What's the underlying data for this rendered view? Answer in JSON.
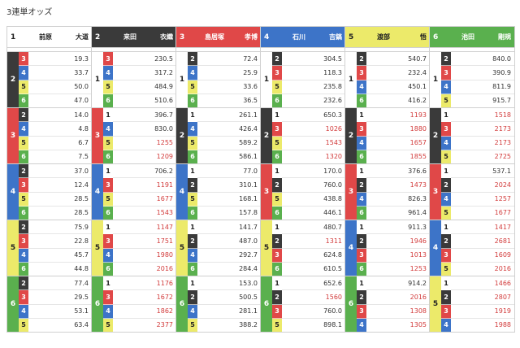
{
  "title": "3連単オッズ",
  "panels": [
    {
      "num": "1",
      "name": "前原",
      "given": "大道",
      "color": "b1",
      "groups": [
        {
          "second": "2",
          "second_color": "b2",
          "rows": [
            {
              "third": "3",
              "c": "b3",
              "odds": "19.3"
            },
            {
              "third": "4",
              "c": "b4",
              "odds": "33.7"
            },
            {
              "third": "5",
              "c": "b5",
              "odds": "50.0"
            },
            {
              "third": "6",
              "c": "b6",
              "odds": "47.0"
            }
          ]
        },
        {
          "second": "3",
          "second_color": "b3",
          "rows": [
            {
              "third": "2",
              "c": "b2",
              "odds": "14.0"
            },
            {
              "third": "4",
              "c": "b4",
              "odds": "4.8"
            },
            {
              "third": "5",
              "c": "b5",
              "odds": "6.7"
            },
            {
              "third": "6",
              "c": "b6",
              "odds": "7.5"
            }
          ]
        },
        {
          "second": "4",
          "second_color": "b4",
          "rows": [
            {
              "third": "2",
              "c": "b2",
              "odds": "37.0"
            },
            {
              "third": "3",
              "c": "b3",
              "odds": "12.4"
            },
            {
              "third": "5",
              "c": "b5",
              "odds": "28.5"
            },
            {
              "third": "6",
              "c": "b6",
              "odds": "28.5"
            }
          ]
        },
        {
          "second": "5",
          "second_color": "b5",
          "rows": [
            {
              "third": "2",
              "c": "b2",
              "odds": "75.9"
            },
            {
              "third": "3",
              "c": "b3",
              "odds": "22.8"
            },
            {
              "third": "4",
              "c": "b4",
              "odds": "45.7"
            },
            {
              "third": "6",
              "c": "b6",
              "odds": "44.8"
            }
          ]
        },
        {
          "second": "6",
          "second_color": "b6",
          "rows": [
            {
              "third": "2",
              "c": "b2",
              "odds": "77.4"
            },
            {
              "third": "3",
              "c": "b3",
              "odds": "29.5"
            },
            {
              "third": "4",
              "c": "b4",
              "odds": "53.1"
            },
            {
              "third": "5",
              "c": "b5",
              "odds": "63.4"
            }
          ]
        }
      ]
    },
    {
      "num": "2",
      "name": "来田",
      "given": "衣織",
      "color": "b2",
      "groups": [
        {
          "second": "1",
          "second_color": "b1",
          "rows": [
            {
              "third": "3",
              "c": "b3",
              "odds": "230.5"
            },
            {
              "third": "4",
              "c": "b4",
              "odds": "317.2"
            },
            {
              "third": "5",
              "c": "b5",
              "odds": "484.9"
            },
            {
              "third": "6",
              "c": "b6",
              "odds": "510.6"
            }
          ]
        },
        {
          "second": "3",
          "second_color": "b3",
          "rows": [
            {
              "third": "1",
              "c": "b1",
              "odds": "396.7"
            },
            {
              "third": "4",
              "c": "b4",
              "odds": "830.0"
            },
            {
              "third": "5",
              "c": "b5",
              "odds": "1255"
            },
            {
              "third": "6",
              "c": "b6",
              "odds": "1209"
            }
          ]
        },
        {
          "second": "4",
          "second_color": "b4",
          "rows": [
            {
              "third": "1",
              "c": "b1",
              "odds": "706.2"
            },
            {
              "third": "3",
              "c": "b3",
              "odds": "1191"
            },
            {
              "third": "5",
              "c": "b5",
              "odds": "1677"
            },
            {
              "third": "6",
              "c": "b6",
              "odds": "1543"
            }
          ]
        },
        {
          "second": "5",
          "second_color": "b5",
          "rows": [
            {
              "third": "1",
              "c": "b1",
              "odds": "1147"
            },
            {
              "third": "3",
              "c": "b3",
              "odds": "1751"
            },
            {
              "third": "4",
              "c": "b4",
              "odds": "1980"
            },
            {
              "third": "6",
              "c": "b6",
              "odds": "2016"
            }
          ]
        },
        {
          "second": "6",
          "second_color": "b6",
          "rows": [
            {
              "third": "1",
              "c": "b1",
              "odds": "1176"
            },
            {
              "third": "3",
              "c": "b3",
              "odds": "1672"
            },
            {
              "third": "4",
              "c": "b4",
              "odds": "1862"
            },
            {
              "third": "5",
              "c": "b5",
              "odds": "2377"
            }
          ]
        }
      ]
    },
    {
      "num": "3",
      "name": "島居塚",
      "given": "孝博",
      "color": "b3",
      "groups": [
        {
          "second": "1",
          "second_color": "b1",
          "rows": [
            {
              "third": "2",
              "c": "b2",
              "odds": "72.4"
            },
            {
              "third": "4",
              "c": "b4",
              "odds": "25.9"
            },
            {
              "third": "5",
              "c": "b5",
              "odds": "33.6"
            },
            {
              "third": "6",
              "c": "b6",
              "odds": "36.5"
            }
          ]
        },
        {
          "second": "2",
          "second_color": "b2",
          "rows": [
            {
              "third": "1",
              "c": "b1",
              "odds": "261.1"
            },
            {
              "third": "4",
              "c": "b4",
              "odds": "426.4"
            },
            {
              "third": "5",
              "c": "b5",
              "odds": "589.2"
            },
            {
              "third": "6",
              "c": "b6",
              "odds": "586.1"
            }
          ]
        },
        {
          "second": "4",
          "second_color": "b4",
          "rows": [
            {
              "third": "1",
              "c": "b1",
              "odds": "77.0"
            },
            {
              "third": "2",
              "c": "b2",
              "odds": "310.1"
            },
            {
              "third": "5",
              "c": "b5",
              "odds": "168.1"
            },
            {
              "third": "6",
              "c": "b6",
              "odds": "157.8"
            }
          ]
        },
        {
          "second": "5",
          "second_color": "b5",
          "rows": [
            {
              "third": "1",
              "c": "b1",
              "odds": "141.7"
            },
            {
              "third": "2",
              "c": "b2",
              "odds": "487.0"
            },
            {
              "third": "4",
              "c": "b4",
              "odds": "292.7"
            },
            {
              "third": "6",
              "c": "b6",
              "odds": "284.4"
            }
          ]
        },
        {
          "second": "6",
          "second_color": "b6",
          "rows": [
            {
              "third": "1",
              "c": "b1",
              "odds": "153.0"
            },
            {
              "third": "2",
              "c": "b2",
              "odds": "500.5"
            },
            {
              "third": "4",
              "c": "b4",
              "odds": "281.1"
            },
            {
              "third": "5",
              "c": "b5",
              "odds": "388.2"
            }
          ]
        }
      ]
    },
    {
      "num": "4",
      "name": "石川",
      "given": "吉鎬",
      "color": "b4",
      "groups": [
        {
          "second": "1",
          "second_color": "b1",
          "rows": [
            {
              "third": "2",
              "c": "b2",
              "odds": "304.5"
            },
            {
              "third": "3",
              "c": "b3",
              "odds": "118.3"
            },
            {
              "third": "5",
              "c": "b5",
              "odds": "235.8"
            },
            {
              "third": "6",
              "c": "b6",
              "odds": "232.6"
            }
          ]
        },
        {
          "second": "2",
          "second_color": "b2",
          "rows": [
            {
              "third": "1",
              "c": "b1",
              "odds": "650.3"
            },
            {
              "third": "3",
              "c": "b3",
              "odds": "1026"
            },
            {
              "third": "5",
              "c": "b5",
              "odds": "1543"
            },
            {
              "third": "6",
              "c": "b6",
              "odds": "1320"
            }
          ]
        },
        {
          "second": "3",
          "second_color": "b3",
          "rows": [
            {
              "third": "1",
              "c": "b1",
              "odds": "170.0"
            },
            {
              "third": "2",
              "c": "b2",
              "odds": "760.0"
            },
            {
              "third": "5",
              "c": "b5",
              "odds": "438.8"
            },
            {
              "third": "6",
              "c": "b6",
              "odds": "446.1"
            }
          ]
        },
        {
          "second": "5",
          "second_color": "b5",
          "rows": [
            {
              "third": "1",
              "c": "b1",
              "odds": "480.7"
            },
            {
              "third": "2",
              "c": "b2",
              "odds": "1311"
            },
            {
              "third": "3",
              "c": "b3",
              "odds": "624.8"
            },
            {
              "third": "6",
              "c": "b6",
              "odds": "610.5"
            }
          ]
        },
        {
          "second": "6",
          "second_color": "b6",
          "rows": [
            {
              "third": "1",
              "c": "b1",
              "odds": "652.6"
            },
            {
              "third": "2",
              "c": "b2",
              "odds": "1560"
            },
            {
              "third": "3",
              "c": "b3",
              "odds": "760.0"
            },
            {
              "third": "5",
              "c": "b5",
              "odds": "898.1"
            }
          ]
        }
      ]
    },
    {
      "num": "5",
      "name": "渡部",
      "given": "悟",
      "color": "b5",
      "groups": [
        {
          "second": "1",
          "second_color": "b1",
          "rows": [
            {
              "third": "2",
              "c": "b2",
              "odds": "540.7"
            },
            {
              "third": "3",
              "c": "b3",
              "odds": "232.4"
            },
            {
              "third": "4",
              "c": "b4",
              "odds": "450.1"
            },
            {
              "third": "6",
              "c": "b6",
              "odds": "416.2"
            }
          ]
        },
        {
          "second": "2",
          "second_color": "b2",
          "rows": [
            {
              "third": "1",
              "c": "b1",
              "odds": "1193"
            },
            {
              "third": "3",
              "c": "b3",
              "odds": "1880"
            },
            {
              "third": "4",
              "c": "b4",
              "odds": "1657"
            },
            {
              "third": "6",
              "c": "b6",
              "odds": "1855"
            }
          ]
        },
        {
          "second": "3",
          "second_color": "b3",
          "rows": [
            {
              "third": "1",
              "c": "b1",
              "odds": "376.6"
            },
            {
              "third": "2",
              "c": "b2",
              "odds": "1473"
            },
            {
              "third": "4",
              "c": "b4",
              "odds": "826.3"
            },
            {
              "third": "6",
              "c": "b6",
              "odds": "961.4"
            }
          ]
        },
        {
          "second": "4",
          "second_color": "b4",
          "rows": [
            {
              "third": "1",
              "c": "b1",
              "odds": "911.3"
            },
            {
              "third": "2",
              "c": "b2",
              "odds": "1946"
            },
            {
              "third": "3",
              "c": "b3",
              "odds": "1013"
            },
            {
              "third": "6",
              "c": "b6",
              "odds": "1253"
            }
          ]
        },
        {
          "second": "6",
          "second_color": "b6",
          "rows": [
            {
              "third": "1",
              "c": "b1",
              "odds": "914.2"
            },
            {
              "third": "2",
              "c": "b2",
              "odds": "2016"
            },
            {
              "third": "3",
              "c": "b3",
              "odds": "1308"
            },
            {
              "third": "4",
              "c": "b4",
              "odds": "1305"
            }
          ]
        }
      ]
    },
    {
      "num": "6",
      "name": "池田",
      "given": "剛規",
      "color": "b6",
      "groups": [
        {
          "second": "1",
          "second_color": "b1",
          "rows": [
            {
              "third": "2",
              "c": "b2",
              "odds": "840.0"
            },
            {
              "third": "3",
              "c": "b3",
              "odds": "390.9"
            },
            {
              "third": "4",
              "c": "b4",
              "odds": "811.9"
            },
            {
              "third": "5",
              "c": "b5",
              "odds": "915.7"
            }
          ]
        },
        {
          "second": "2",
          "second_color": "b2",
          "rows": [
            {
              "third": "1",
              "c": "b1",
              "odds": "1518"
            },
            {
              "third": "3",
              "c": "b3",
              "odds": "2173"
            },
            {
              "third": "4",
              "c": "b4",
              "odds": "2173"
            },
            {
              "third": "5",
              "c": "b5",
              "odds": "2725"
            }
          ]
        },
        {
          "second": "3",
          "second_color": "b3",
          "rows": [
            {
              "third": "1",
              "c": "b1",
              "odds": "537.1"
            },
            {
              "third": "2",
              "c": "b2",
              "odds": "2024"
            },
            {
              "third": "4",
              "c": "b4",
              "odds": "1257"
            },
            {
              "third": "5",
              "c": "b5",
              "odds": "1677"
            }
          ]
        },
        {
          "second": "4",
          "second_color": "b4",
          "rows": [
            {
              "third": "1",
              "c": "b1",
              "odds": "1417"
            },
            {
              "third": "2",
              "c": "b2",
              "odds": "2681"
            },
            {
              "third": "3",
              "c": "b3",
              "odds": "1609"
            },
            {
              "third": "5",
              "c": "b5",
              "odds": "2016"
            }
          ]
        },
        {
          "second": "5",
          "second_color": "b5",
          "rows": [
            {
              "third": "1",
              "c": "b1",
              "odds": "1466"
            },
            {
              "third": "2",
              "c": "b2",
              "odds": "2807"
            },
            {
              "third": "3",
              "c": "b3",
              "odds": "1919"
            },
            {
              "third": "4",
              "c": "b4",
              "odds": "1988"
            }
          ]
        }
      ]
    }
  ]
}
